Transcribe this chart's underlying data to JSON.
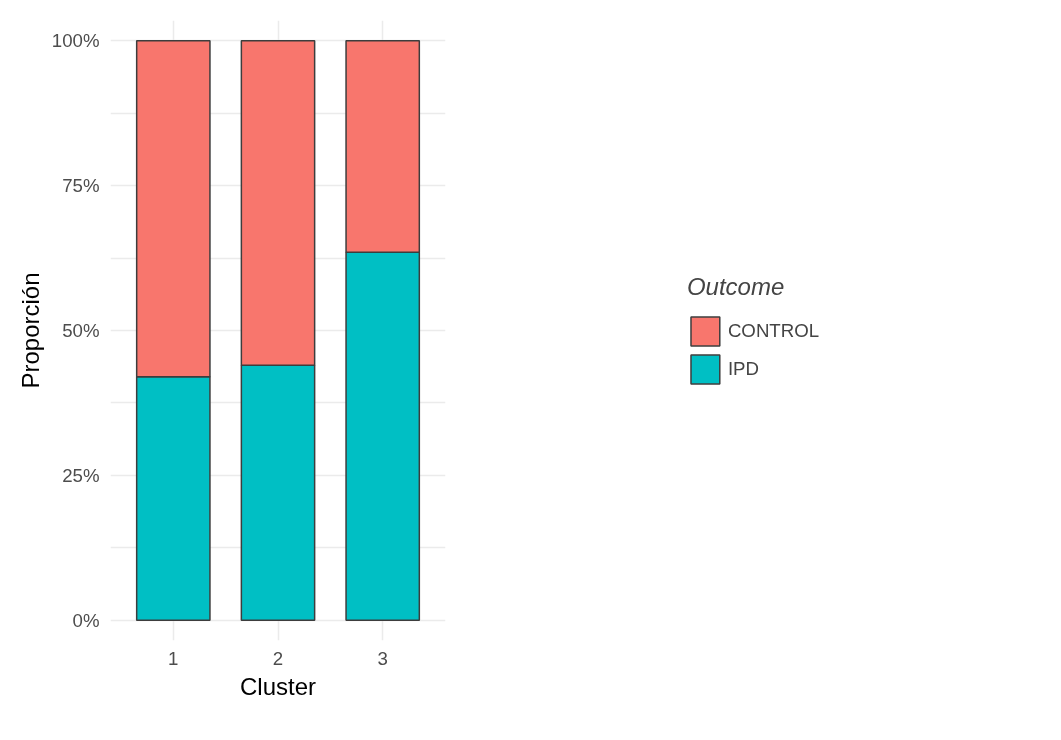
{
  "chart_data": {
    "type": "bar",
    "stacked": true,
    "xlabel": "Cluster",
    "ylabel": "Proporción",
    "legend_title": "Outcome",
    "categories": [
      "1",
      "2",
      "3"
    ],
    "series": [
      {
        "name": "IPD",
        "color": "#00bfc4",
        "values": [
          42,
          44,
          63.5
        ]
      },
      {
        "name": "CONTROL",
        "color": "#f8766d",
        "values": [
          58,
          56,
          36.5
        ]
      }
    ],
    "ylim": [
      -3.5,
      103.5
    ],
    "yticks": [
      {
        "value": 0,
        "label": "0%"
      },
      {
        "value": 12.5,
        "label": null
      },
      {
        "value": 25,
        "label": "25%"
      },
      {
        "value": 37.5,
        "label": null
      },
      {
        "value": 50,
        "label": "50%"
      },
      {
        "value": 62.5,
        "label": null
      },
      {
        "value": 75,
        "label": "75%"
      },
      {
        "value": 87.5,
        "label": null
      },
      {
        "value": 100,
        "label": "100%"
      }
    ],
    "grid": true,
    "legend": "right"
  }
}
